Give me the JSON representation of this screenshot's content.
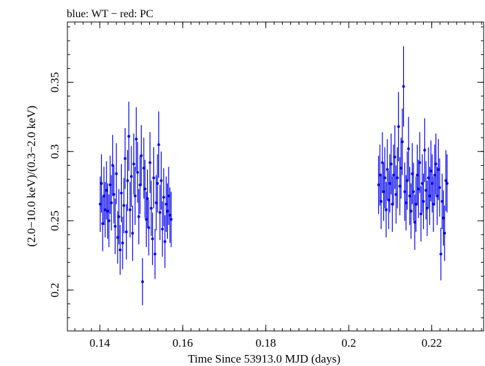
{
  "chart_data": {
    "type": "scatter",
    "title": "blue: WT − red: PC",
    "xlabel": "Time Since 53913.0 MJD (days)",
    "ylabel": "(2.0−10.0 keV)/(0.3−2.0 keV)",
    "xlim": [
      0.1322,
      0.2325
    ],
    "ylim": [
      0.1705,
      0.3935
    ],
    "xticks": [
      0.14,
      0.16,
      0.18,
      0.2,
      0.22
    ],
    "xtick_labels": [
      "0.14",
      "0.16",
      "0.18",
      "0.2",
      "0.22"
    ],
    "yticks": [
      0.2,
      0.25,
      0.3,
      0.35
    ],
    "ytick_labels": [
      "0.2",
      "0.25",
      "0.3",
      "0.35"
    ],
    "grid": false,
    "series": [
      {
        "name": "WT",
        "color": "#0000ee",
        "points": [
          [
            0.1401,
            0.262,
            0.02
          ],
          [
            0.1404,
            0.277,
            0.021
          ],
          [
            0.1407,
            0.248,
            0.02
          ],
          [
            0.141,
            0.268,
            0.021
          ],
          [
            0.1413,
            0.258,
            0.02
          ],
          [
            0.1416,
            0.272,
            0.021
          ],
          [
            0.1419,
            0.257,
            0.02
          ],
          [
            0.1422,
            0.25,
            0.019
          ],
          [
            0.1425,
            0.276,
            0.021
          ],
          [
            0.1428,
            0.263,
            0.02
          ],
          [
            0.1431,
            0.29,
            0.022
          ],
          [
            0.1434,
            0.269,
            0.021
          ],
          [
            0.1437,
            0.246,
            0.02
          ],
          [
            0.144,
            0.284,
            0.022
          ],
          [
            0.1443,
            0.238,
            0.019
          ],
          [
            0.1446,
            0.253,
            0.02
          ],
          [
            0.1449,
            0.229,
            0.018
          ],
          [
            0.1452,
            0.27,
            0.021
          ],
          [
            0.1455,
            0.234,
            0.019
          ],
          [
            0.1458,
            0.261,
            0.02
          ],
          [
            0.1461,
            0.295,
            0.022
          ],
          [
            0.1464,
            0.242,
            0.02
          ],
          [
            0.1467,
            0.279,
            0.022
          ],
          [
            0.147,
            0.311,
            0.025
          ],
          [
            0.1473,
            0.258,
            0.02
          ],
          [
            0.1476,
            0.282,
            0.022
          ],
          [
            0.1479,
            0.241,
            0.02
          ],
          [
            0.1482,
            0.291,
            0.022
          ],
          [
            0.1485,
            0.268,
            0.021
          ],
          [
            0.1488,
            0.309,
            0.023
          ],
          [
            0.1491,
            0.285,
            0.022
          ],
          [
            0.1494,
            0.253,
            0.02
          ],
          [
            0.1497,
            0.276,
            0.021
          ],
          [
            0.15,
            0.297,
            0.022
          ],
          [
            0.1503,
            0.206,
            0.017
          ],
          [
            0.1506,
            0.288,
            0.022
          ],
          [
            0.1509,
            0.273,
            0.021
          ],
          [
            0.1512,
            0.251,
            0.02
          ],
          [
            0.1515,
            0.266,
            0.021
          ],
          [
            0.1518,
            0.245,
            0.02
          ],
          [
            0.1521,
            0.292,
            0.022
          ],
          [
            0.1524,
            0.259,
            0.02
          ],
          [
            0.1527,
            0.237,
            0.019
          ],
          [
            0.153,
            0.281,
            0.022
          ],
          [
            0.1533,
            0.226,
            0.018
          ],
          [
            0.1536,
            0.263,
            0.02
          ],
          [
            0.1539,
            0.277,
            0.021
          ],
          [
            0.1542,
            0.305,
            0.024
          ],
          [
            0.1545,
            0.256,
            0.02
          ],
          [
            0.1548,
            0.279,
            0.021
          ],
          [
            0.1551,
            0.244,
            0.02
          ],
          [
            0.1554,
            0.267,
            0.021
          ],
          [
            0.1557,
            0.235,
            0.019
          ],
          [
            0.156,
            0.262,
            0.02
          ],
          [
            0.1563,
            0.257,
            0.02
          ],
          [
            0.1566,
            0.268,
            0.021
          ],
          [
            0.1569,
            0.254,
            0.02
          ],
          [
            0.1572,
            0.251,
            0.02
          ]
        ]
      },
      {
        "name": "PC",
        "color": "#ee0000",
        "points": [
          [
            0.2072,
            0.276,
            0.021
          ],
          [
            0.2075,
            0.283,
            0.022
          ],
          [
            0.2078,
            0.264,
            0.02
          ],
          [
            0.2081,
            0.292,
            0.022
          ],
          [
            0.2084,
            0.271,
            0.021
          ],
          [
            0.2087,
            0.281,
            0.022
          ],
          [
            0.209,
            0.258,
            0.02
          ],
          [
            0.2093,
            0.287,
            0.022
          ],
          [
            0.2096,
            0.265,
            0.021
          ],
          [
            0.2099,
            0.277,
            0.021
          ],
          [
            0.2102,
            0.291,
            0.022
          ],
          [
            0.2105,
            0.262,
            0.02
          ],
          [
            0.2108,
            0.283,
            0.022
          ],
          [
            0.2111,
            0.296,
            0.023
          ],
          [
            0.2114,
            0.269,
            0.021
          ],
          [
            0.2117,
            0.281,
            0.022
          ],
          [
            0.212,
            0.318,
            0.025
          ],
          [
            0.2123,
            0.275,
            0.021
          ],
          [
            0.2126,
            0.288,
            0.022
          ],
          [
            0.2129,
            0.307,
            0.024
          ],
          [
            0.2132,
            0.347,
            0.029
          ],
          [
            0.2135,
            0.271,
            0.021
          ],
          [
            0.2138,
            0.263,
            0.02
          ],
          [
            0.2141,
            0.279,
            0.021
          ],
          [
            0.2144,
            0.302,
            0.023
          ],
          [
            0.2147,
            0.268,
            0.021
          ],
          [
            0.215,
            0.257,
            0.02
          ],
          [
            0.2153,
            0.284,
            0.022
          ],
          [
            0.2156,
            0.271,
            0.021
          ],
          [
            0.2159,
            0.249,
            0.02
          ],
          [
            0.2162,
            0.262,
            0.02
          ],
          [
            0.2165,
            0.283,
            0.022
          ],
          [
            0.2168,
            0.273,
            0.021
          ],
          [
            0.2171,
            0.292,
            0.022
          ],
          [
            0.2174,
            0.255,
            0.02
          ],
          [
            0.2177,
            0.277,
            0.021
          ],
          [
            0.218,
            0.264,
            0.02
          ],
          [
            0.2183,
            0.301,
            0.023
          ],
          [
            0.2186,
            0.272,
            0.021
          ],
          [
            0.2189,
            0.259,
            0.02
          ],
          [
            0.2192,
            0.281,
            0.022
          ],
          [
            0.2195,
            0.268,
            0.021
          ],
          [
            0.2198,
            0.286,
            0.022
          ],
          [
            0.2201,
            0.277,
            0.021
          ],
          [
            0.2204,
            0.262,
            0.02
          ],
          [
            0.2207,
            0.283,
            0.022
          ],
          [
            0.221,
            0.291,
            0.022
          ],
          [
            0.2213,
            0.268,
            0.021
          ],
          [
            0.2216,
            0.287,
            0.022
          ],
          [
            0.2219,
            0.274,
            0.021
          ],
          [
            0.2222,
            0.226,
            0.019
          ],
          [
            0.2225,
            0.264,
            0.02
          ],
          [
            0.2228,
            0.252,
            0.02
          ],
          [
            0.2231,
            0.241,
            0.02
          ],
          [
            0.2234,
            0.279,
            0.022
          ],
          [
            0.2237,
            0.277,
            0.021
          ]
        ]
      }
    ]
  }
}
